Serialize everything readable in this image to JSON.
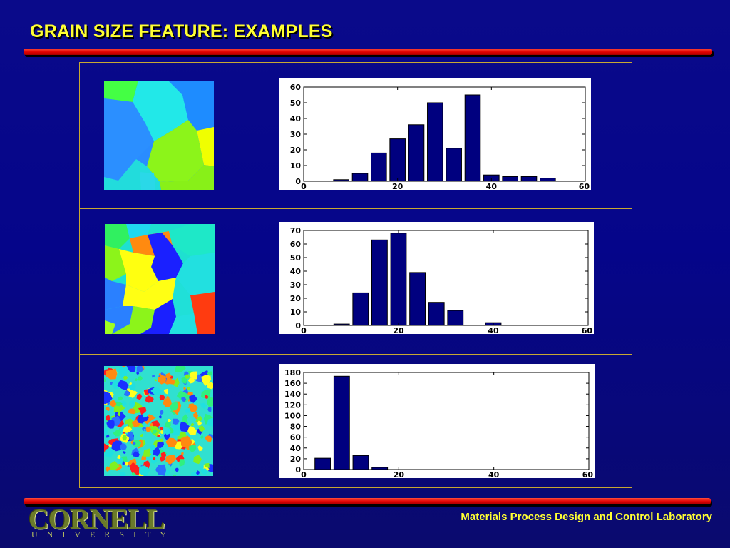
{
  "slide": {
    "title": "GRAIN SIZE FEATURE: EXAMPLES",
    "footer": "Materials Process Design and Control Laboratory",
    "logo": {
      "name": "CORNELL",
      "sub": "UNIVERSITY"
    },
    "colors": {
      "background": "#0a0a8a",
      "title": "#ffff33",
      "accent_bar": "#e00000",
      "bar_fill": "#00007f",
      "frame": "#c8a832"
    }
  },
  "chart_data": [
    {
      "type": "bar",
      "x": [
        8,
        12,
        16,
        20,
        24,
        28,
        32,
        36,
        40,
        44,
        48,
        52,
        56
      ],
      "values": [
        1,
        5,
        18,
        27,
        36,
        50,
        21,
        55,
        4,
        3,
        3,
        2,
        0
      ],
      "xlim": [
        0,
        60
      ],
      "ylim": [
        0,
        60
      ],
      "xticks": [
        "0",
        "20",
        "40",
        "60"
      ],
      "yticks": [
        "0",
        "10",
        "20",
        "30",
        "40",
        "50",
        "60"
      ],
      "grid": false
    },
    {
      "type": "bar",
      "x": [
        8,
        12,
        16,
        20,
        24,
        28,
        32,
        36,
        40
      ],
      "values": [
        1,
        24,
        63,
        68,
        39,
        17,
        11,
        0,
        2
      ],
      "xlim": [
        0,
        60
      ],
      "ylim": [
        0,
        70
      ],
      "xticks": [
        "0",
        "20",
        "40",
        "60"
      ],
      "yticks": [
        "0",
        "10",
        "20",
        "30",
        "40",
        "50",
        "60",
        "70"
      ],
      "grid": false
    },
    {
      "type": "bar",
      "x": [
        4,
        8,
        12,
        16
      ],
      "values": [
        21,
        173,
        26,
        4
      ],
      "xlim": [
        0,
        60
      ],
      "ylim": [
        0,
        180
      ],
      "xticks": [
        "0",
        "20",
        "40",
        "60"
      ],
      "yticks": [
        "0",
        "20",
        "40",
        "60",
        "80",
        "100",
        "120",
        "140",
        "160",
        "180"
      ],
      "grid": false
    }
  ]
}
